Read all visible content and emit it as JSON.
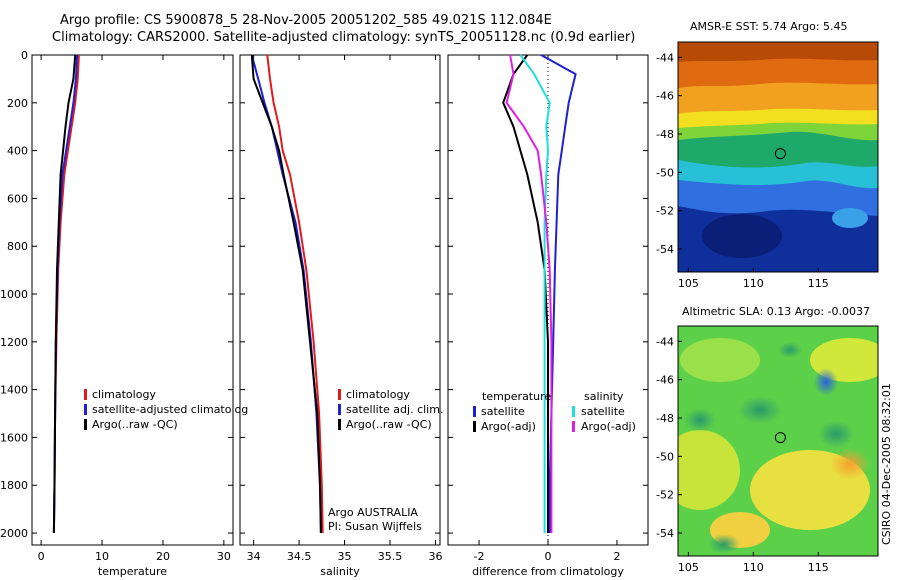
{
  "header": {
    "line1": "Argo profile: CS 5900878_5 28-Nov-2005 20051202_585 49.021S 112.084E",
    "line2": "Climatology: CARS2000. Satellite-adjusted climatology: synTS_20051128.nc (0.9d earlier)"
  },
  "colors": {
    "climatology": "#e31a1c",
    "satellite": "#1f1fd6",
    "argo": "#000000",
    "salinity_satellite": "#22dddd",
    "salinity_argo": "#e020e0"
  },
  "chart_data": [
    {
      "id": "temperature",
      "type": "line",
      "xlabel": "temperature",
      "xlim": [
        -1.5,
        31.5
      ],
      "ylim": [
        2050,
        0
      ],
      "xticks": [
        0,
        10,
        20,
        30
      ],
      "yticks": [
        0,
        200,
        400,
        600,
        800,
        1000,
        1200,
        1400,
        1600,
        1800,
        2000
      ],
      "legend": [
        "climatology",
        "satellite-adjusted climatolog",
        "Argo(..raw -QC)"
      ],
      "series": [
        {
          "key": "climatology",
          "x": [
            6.2,
            6.0,
            5.6,
            5.0,
            4.4,
            3.8,
            3.2,
            2.8,
            2.5,
            2.3,
            2.2,
            2.1
          ],
          "y": [
            0,
            100,
            200,
            300,
            400,
            500,
            700,
            900,
            1200,
            1500,
            1800,
            2000
          ]
        },
        {
          "key": "satellite",
          "x": [
            5.9,
            5.7,
            5.3,
            4.7,
            4.1,
            3.5,
            3.0,
            2.7,
            2.4,
            2.3,
            2.2,
            2.1
          ],
          "y": [
            0,
            100,
            200,
            300,
            400,
            500,
            700,
            900,
            1200,
            1500,
            1800,
            2000
          ]
        },
        {
          "key": "argo",
          "x": [
            5.6,
            5.3,
            4.5,
            4.0,
            3.6,
            3.2,
            2.9,
            2.6,
            2.4,
            2.3,
            2.2,
            2.1
          ],
          "y": [
            0,
            100,
            200,
            300,
            400,
            500,
            700,
            900,
            1200,
            1500,
            1800,
            2000
          ]
        }
      ]
    },
    {
      "id": "salinity",
      "type": "line",
      "xlabel": "salinity",
      "xlim": [
        33.85,
        36.05
      ],
      "ylim": [
        2050,
        0
      ],
      "xticks": [
        34,
        34.5,
        35,
        35.5,
        36
      ],
      "legend": [
        "climatology",
        "satellite adj. clim.",
        "Argo(..raw -QC)"
      ],
      "annotation": [
        "Argo AUSTRALIA",
        "PI: Susan Wijffels"
      ],
      "series": [
        {
          "key": "climatology",
          "x": [
            34.15,
            34.18,
            34.22,
            34.28,
            34.32,
            34.4,
            34.5,
            34.58,
            34.66,
            34.72,
            34.75,
            34.76
          ],
          "y": [
            0,
            100,
            200,
            300,
            400,
            500,
            700,
            900,
            1200,
            1500,
            1800,
            2000
          ]
        },
        {
          "key": "satellite",
          "x": [
            33.98,
            34.05,
            34.12,
            34.2,
            34.26,
            34.32,
            34.46,
            34.55,
            34.63,
            34.69,
            34.73,
            34.74
          ],
          "y": [
            0,
            100,
            200,
            300,
            400,
            500,
            700,
            900,
            1200,
            1500,
            1800,
            2000
          ]
        },
        {
          "key": "argo",
          "x": [
            33.98,
            34.0,
            34.1,
            34.2,
            34.28,
            34.33,
            34.44,
            34.54,
            34.62,
            34.7,
            34.73,
            34.74
          ],
          "y": [
            0,
            100,
            200,
            300,
            400,
            500,
            700,
            900,
            1200,
            1500,
            1800,
            2000
          ]
        }
      ]
    },
    {
      "id": "difference",
      "type": "line",
      "xlabel": "difference from climatology",
      "xlim": [
        -2.9,
        2.9
      ],
      "ylim": [
        2050,
        0
      ],
      "xticks": [
        -2,
        0,
        2
      ],
      "legend_left_title": "temperature",
      "legend_right_title": "salinity",
      "legend_left": [
        "satellite",
        "Argo(-adj)"
      ],
      "legend_right": [
        "satellite",
        "Argo(-adj)"
      ],
      "series": [
        {
          "key": "temp_satellite",
          "x": [
            -0.2,
            0.8,
            0.6,
            0.5,
            0.4,
            0.3,
            0.25,
            0.2,
            0.15,
            0.1,
            0.05,
            0.05
          ],
          "y": [
            0,
            80,
            200,
            300,
            400,
            500,
            700,
            900,
            1200,
            1500,
            1800,
            2000
          ]
        },
        {
          "key": "temp_argo",
          "x": [
            -0.6,
            -1.0,
            -1.3,
            -1.0,
            -0.8,
            -0.6,
            -0.3,
            -0.1,
            0.0,
            0.0,
            0.0,
            0.0
          ],
          "y": [
            0,
            80,
            200,
            300,
            400,
            500,
            700,
            900,
            1200,
            1500,
            1800,
            2000
          ]
        },
        {
          "key": "sal_satellite",
          "x": [
            -0.8,
            -0.4,
            0.05,
            -0.05,
            0.0,
            -0.05,
            -0.1,
            -0.1,
            -0.1,
            -0.1,
            -0.1,
            -0.1
          ],
          "y": [
            0,
            80,
            200,
            300,
            400,
            500,
            700,
            900,
            1200,
            1500,
            1800,
            2000
          ]
        },
        {
          "key": "sal_argo",
          "x": [
            -1.1,
            -1.0,
            -1.2,
            -0.7,
            -0.3,
            -0.2,
            -0.05,
            0.05,
            0.1,
            0.1,
            0.1,
            0.1
          ],
          "y": [
            0,
            80,
            200,
            300,
            400,
            500,
            700,
            900,
            1200,
            1500,
            1800,
            2000
          ]
        }
      ]
    },
    {
      "id": "sst_map",
      "type": "heatmap",
      "title": "AMSR-E SST: 5.74 Argo: 5.45",
      "xlim": [
        104.2,
        119.6
      ],
      "ylim": [
        -55.2,
        -43.2
      ],
      "xticks": [
        105,
        110,
        115
      ],
      "yticks": [
        -44,
        -46,
        -48,
        -50,
        -52,
        -54
      ],
      "marker": {
        "x": 112.084,
        "y": -49.021
      }
    },
    {
      "id": "sla_map",
      "type": "heatmap",
      "title": "Altimetric SLA: 0.13 Argo: -0.0037",
      "xlim": [
        104.2,
        119.6
      ],
      "ylim": [
        -55.2,
        -43.2
      ],
      "xticks": [
        105,
        110,
        115
      ],
      "yticks": [
        -44,
        -46,
        -48,
        -50,
        -52,
        -54
      ],
      "marker": {
        "x": 112.084,
        "y": -49.021
      }
    }
  ],
  "credit": "CSIRO 04-Dec-2005 08:32:01"
}
